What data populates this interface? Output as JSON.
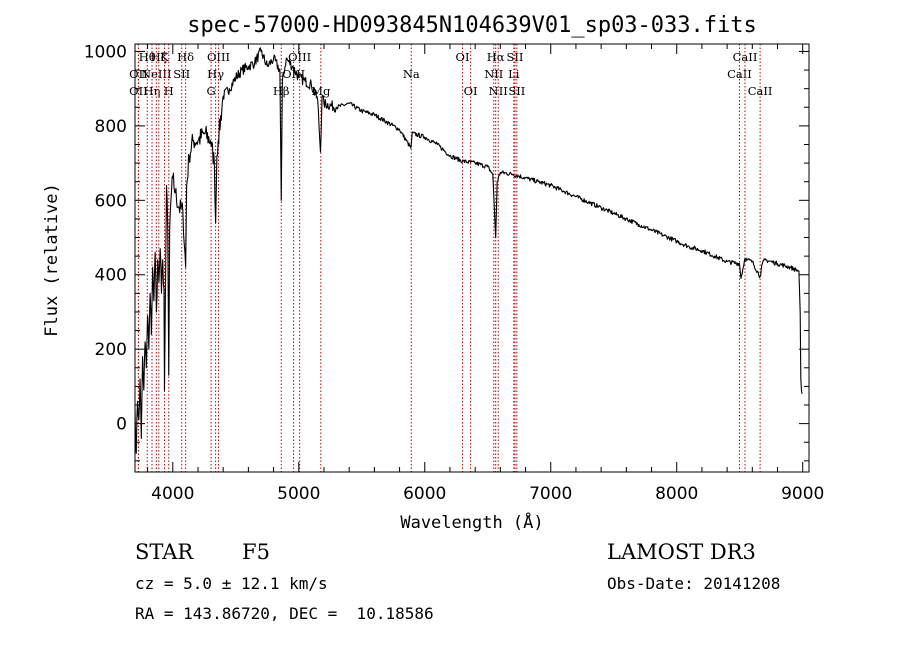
{
  "chart_data": {
    "type": "line",
    "title": "spec-57000-HD093845N104639V01_sp03-033.fits",
    "xlabel": "Wavelength (Å)",
    "ylabel": "Flux (relative)",
    "xlim": [
      3700,
      9050
    ],
    "ylim": [
      -130,
      1020
    ],
    "xticks": [
      4000,
      5000,
      6000,
      7000,
      8000,
      9000
    ],
    "yticks": [
      0,
      200,
      400,
      600,
      800,
      1000
    ],
    "grid": false,
    "series": [
      {
        "name": "Flux",
        "x": [
          3700,
          3710,
          3720,
          3730,
          3740,
          3750,
          3760,
          3770,
          3780,
          3790,
          3800,
          3810,
          3820,
          3830,
          3840,
          3850,
          3860,
          3870,
          3880,
          3890,
          3900,
          3910,
          3920,
          3930,
          3934,
          3940,
          3950,
          3960,
          3968,
          3975,
          3985,
          4000,
          4020,
          4050,
          4080,
          4102,
          4110,
          4130,
          4160,
          4200,
          4250,
          4300,
          4330,
          4340,
          4350,
          4360,
          4400,
          4450,
          4500,
          4550,
          4600,
          4650,
          4700,
          4750,
          4800,
          4850,
          4861,
          4870,
          4900,
          4950,
          5000,
          5050,
          5100,
          5150,
          5172,
          5185,
          5200,
          5300,
          5400,
          5500,
          5600,
          5700,
          5800,
          5890,
          5900,
          6000,
          6100,
          6200,
          6300,
          6400,
          6500,
          6540,
          6555,
          6563,
          6575,
          6600,
          6700,
          6800,
          6900,
          7000,
          7100,
          7200,
          7300,
          7400,
          7500,
          7600,
          7700,
          7800,
          7900,
          8000,
          8100,
          8200,
          8300,
          8400,
          8498,
          8510,
          8542,
          8560,
          8600,
          8662,
          8680,
          8700,
          8800,
          8900,
          8970,
          8980,
          8985,
          8990,
          8995
        ],
        "values": [
          40,
          -80,
          60,
          10,
          120,
          -40,
          180,
          90,
          220,
          150,
          290,
          200,
          350,
          240,
          420,
          330,
          460,
          300,
          440,
          380,
          470,
          350,
          440,
          360,
          90,
          300,
          640,
          520,
          130,
          520,
          600,
          660,
          620,
          580,
          570,
          420,
          640,
          720,
          760,
          760,
          780,
          760,
          700,
          540,
          720,
          760,
          880,
          900,
          930,
          950,
          960,
          970,
          1000,
          960,
          980,
          950,
          600,
          920,
          980,
          960,
          930,
          920,
          910,
          870,
          730,
          880,
          860,
          850,
          860,
          840,
          830,
          810,
          790,
          740,
          780,
          770,
          750,
          720,
          705,
          700,
          690,
          670,
          560,
          500,
          650,
          675,
          670,
          660,
          650,
          640,
          625,
          610,
          595,
          580,
          565,
          550,
          535,
          520,
          505,
          490,
          475,
          465,
          450,
          435,
          430,
          390,
          445,
          440,
          435,
          395,
          430,
          440,
          430,
          420,
          410,
          300,
          120,
          90,
          80
        ]
      }
    ],
    "lines": [
      {
        "wl": 3727,
        "label": "OII",
        "row": 2
      },
      {
        "wl": 3727,
        "label": "OII",
        "row": 3
      },
      {
        "wl": 3797,
        "label": "Hθ",
        "row": 1
      },
      {
        "wl": 3835,
        "label": "Hη",
        "row": 3
      },
      {
        "wl": 3869,
        "label": "NeIII",
        "row": 2
      },
      {
        "wl": 3889,
        "label": "Hζ",
        "row": 1
      },
      {
        "wl": 3934,
        "label": "K",
        "row": 1
      },
      {
        "wl": 3968,
        "label": "H",
        "row": 3
      },
      {
        "wl": 4071,
        "label": "SII",
        "row": 2
      },
      {
        "wl": 4102,
        "label": "Hδ",
        "row": 1
      },
      {
        "wl": 4304,
        "label": "G",
        "row": 3
      },
      {
        "wl": 4340,
        "label": "Hγ",
        "row": 2
      },
      {
        "wl": 4363,
        "label": "OIII",
        "row": 1
      },
      {
        "wl": 4861,
        "label": "Hβ",
        "row": 3
      },
      {
        "wl": 4959,
        "label": "OIII",
        "row": 2
      },
      {
        "wl": 5007,
        "label": "OIII",
        "row": 1
      },
      {
        "wl": 5175,
        "label": "Mg",
        "row": 3
      },
      {
        "wl": 5893,
        "label": "Na",
        "row": 2
      },
      {
        "wl": 6300,
        "label": "OI",
        "row": 1
      },
      {
        "wl": 6364,
        "label": "OI",
        "row": 3
      },
      {
        "wl": 6548,
        "label": "NII",
        "row": 2
      },
      {
        "wl": 6563,
        "label": "Hα",
        "row": 1
      },
      {
        "wl": 6583,
        "label": "NII",
        "row": 3
      },
      {
        "wl": 6707,
        "label": "Li",
        "row": 2
      },
      {
        "wl": 6716,
        "label": "SII",
        "row": 1
      },
      {
        "wl": 6731,
        "label": "SII",
        "row": 3
      },
      {
        "wl": 8498,
        "label": "CaII",
        "row": 2
      },
      {
        "wl": 8542,
        "label": "CaII",
        "row": 1
      },
      {
        "wl": 8662,
        "label": "CaII",
        "row": 3
      }
    ]
  },
  "info": {
    "object_class": "STAR",
    "subclass": "F5",
    "survey": "LAMOST DR3",
    "cz": "cz = 5.0 ± 12.1 km/s",
    "obs_date": "Obs-Date: 20141208",
    "coords": "RA = 143.86720, DEC =  10.18586"
  }
}
